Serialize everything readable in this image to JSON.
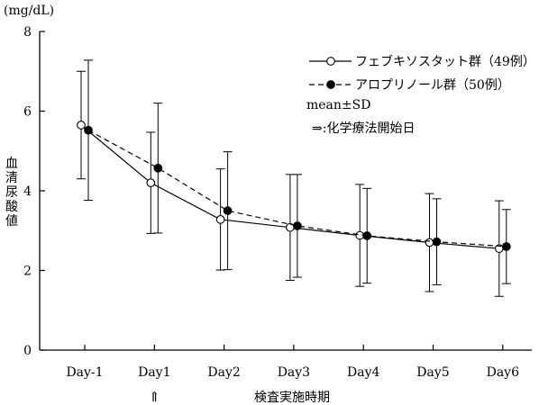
{
  "chart_data": {
    "type": "line",
    "y_unit": "(mg/dL)",
    "ylabel": "血清尿酸値",
    "xlabel": "検査実施時期",
    "categories": [
      "Day-1",
      "Day1",
      "Day2",
      "Day3",
      "Day4",
      "Day5",
      "Day6"
    ],
    "ylim": [
      0,
      8
    ],
    "yticks": [
      0,
      2,
      4,
      6,
      8
    ],
    "grid": false,
    "legend_position": "top-right",
    "series": [
      {
        "name": "フェブキソスタット群（49例）",
        "marker": "open-circle",
        "line": "solid",
        "values": [
          5.65,
          4.2,
          3.28,
          3.08,
          2.88,
          2.7,
          2.55
        ],
        "sd": [
          1.35,
          1.27,
          1.27,
          1.33,
          1.28,
          1.23,
          1.2
        ]
      },
      {
        "name": "アロプリノール群（50例）",
        "marker": "filled-circle",
        "line": "dashed",
        "values": [
          5.52,
          4.57,
          3.5,
          3.12,
          2.87,
          2.72,
          2.6
        ],
        "sd": [
          1.76,
          1.63,
          1.48,
          1.29,
          1.19,
          1.08,
          0.93
        ]
      }
    ],
    "annotations": {
      "stat_note": "mean±SD",
      "arrow_note": "⇒:化学療法開始日",
      "arrow_mark": "⇑",
      "arrow_category_index": 1
    },
    "colors": {
      "axis": "#000000",
      "line": "#000000",
      "open_marker_fill": "#ffffff"
    }
  }
}
